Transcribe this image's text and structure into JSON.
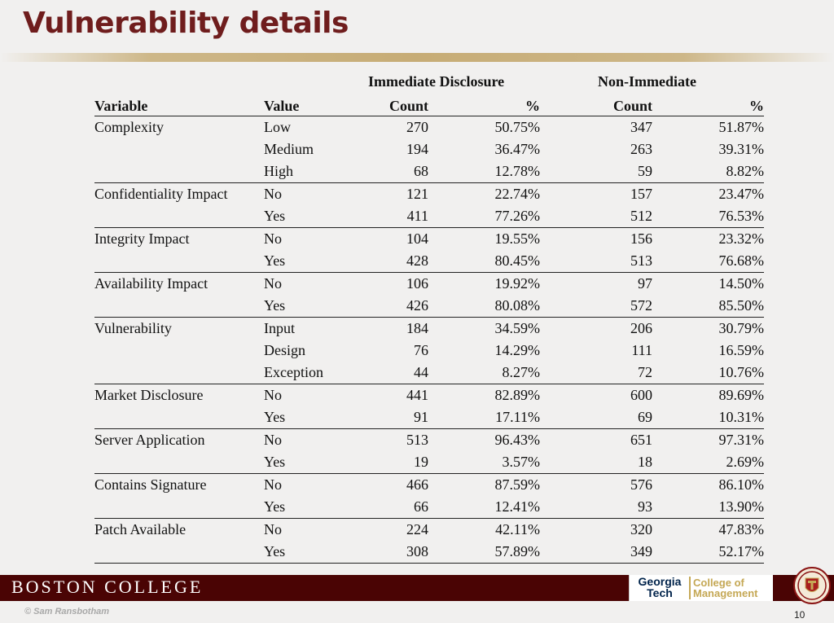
{
  "slide": {
    "title": "Vulnerability details",
    "page_number": "10"
  },
  "table": {
    "group_headers": {
      "immediate": "Immediate Disclosure",
      "non_immediate": "Non-Immediate"
    },
    "columns": [
      "Variable",
      "Value",
      "Count",
      "%",
      "Count",
      "%"
    ],
    "rows": [
      [
        "Complexity",
        "Low",
        "270",
        "50.75%",
        "347",
        "51.87%"
      ],
      [
        "",
        "Medium",
        "194",
        "36.47%",
        "263",
        "39.31%"
      ],
      [
        "",
        "High",
        "68",
        "12.78%",
        "59",
        "8.82%"
      ],
      [
        "Confidentiality Impact",
        "No",
        "121",
        "22.74%",
        "157",
        "23.47%"
      ],
      [
        "",
        "Yes",
        "411",
        "77.26%",
        "512",
        "76.53%"
      ],
      [
        "Integrity Impact",
        "No",
        "104",
        "19.55%",
        "156",
        "23.32%"
      ],
      [
        "",
        "Yes",
        "428",
        "80.45%",
        "513",
        "76.68%"
      ],
      [
        "Availability Impact",
        "No",
        "106",
        "19.92%",
        "97",
        "14.50%"
      ],
      [
        "",
        "Yes",
        "426",
        "80.08%",
        "572",
        "85.50%"
      ],
      [
        "Vulnerability",
        "Input",
        "184",
        "34.59%",
        "206",
        "30.79%"
      ],
      [
        "",
        "Design",
        "76",
        "14.29%",
        "111",
        "16.59%"
      ],
      [
        "",
        "Exception",
        "44",
        "8.27%",
        "72",
        "10.76%"
      ],
      [
        "Market Disclosure",
        "No",
        "441",
        "82.89%",
        "600",
        "89.69%"
      ],
      [
        "",
        "Yes",
        "91",
        "17.11%",
        "69",
        "10.31%"
      ],
      [
        "Server Application",
        "No",
        "513",
        "96.43%",
        "651",
        "97.31%"
      ],
      [
        "",
        "Yes",
        "19",
        "3.57%",
        "18",
        "2.69%"
      ],
      [
        "Contains Signature",
        "No",
        "466",
        "87.59%",
        "576",
        "86.10%"
      ],
      [
        "",
        "Yes",
        "66",
        "12.41%",
        "93",
        "13.90%"
      ],
      [
        "Patch Available",
        "No",
        "224",
        "42.11%",
        "320",
        "47.83%"
      ],
      [
        "",
        "Yes",
        "308",
        "57.89%",
        "349",
        "52.17%"
      ]
    ],
    "group_end_rows": [
      2,
      4,
      6,
      8,
      11,
      13,
      15,
      17,
      19
    ]
  },
  "footer": {
    "institution": "BOSTON COLLEGE",
    "logo_line1": "Georgia",
    "logo_line2": "Tech",
    "logo_line3": "College of",
    "logo_line4": "Management",
    "copyright": "© Sam Ransbotham"
  },
  "colors": {
    "title": "#6f1d1d",
    "footer_band": "#4a0404",
    "accent_gold": "#c5a855"
  },
  "icons": {
    "seal": "boston-college-seal-icon"
  }
}
